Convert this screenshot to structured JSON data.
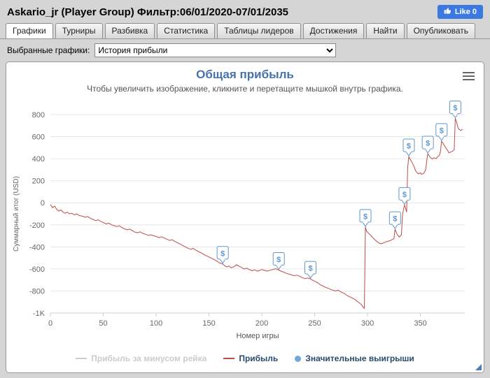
{
  "header": {
    "title": "Askario_jr (Player Group) Фильтр:06/01/2020-07/01/2035",
    "like_label": "Like 0"
  },
  "colors": {
    "title_blue": "#4572A7",
    "like_blue": "#3B79E1"
  },
  "tabs": [
    {
      "label": "Графики",
      "active": true
    },
    {
      "label": "Турниры",
      "active": false
    },
    {
      "label": "Разбивка",
      "active": false
    },
    {
      "label": "Статистика",
      "active": false
    },
    {
      "label": "Таблицы лидеров",
      "active": false
    },
    {
      "label": "Достижения",
      "active": false
    },
    {
      "label": "Найти",
      "active": false
    },
    {
      "label": "Опубликовать",
      "active": false
    }
  ],
  "filter": {
    "label": "Выбранные графики:",
    "selected": "История прибыли"
  },
  "chart_data": {
    "type": "line",
    "title": "Общая прибыль",
    "subtitle": "Чтобы увеличить изображение, кликните и перетащите мышкой внутрь графика.",
    "xlabel": "Номер игры",
    "ylabel": "Суммарный итог (USD)",
    "xlim": [
      0,
      392
    ],
    "ylim": [
      -1000,
      800
    ],
    "grid": "horizontal",
    "legend_position": "bottom",
    "marker_symbol": "$",
    "yticks": [
      {
        "v": 800,
        "label": "800"
      },
      {
        "v": 600,
        "label": "600"
      },
      {
        "v": 400,
        "label": "400"
      },
      {
        "v": 200,
        "label": "200"
      },
      {
        "v": 0,
        "label": "0"
      },
      {
        "v": -200,
        "label": "-200"
      },
      {
        "v": -400,
        "label": "-400"
      },
      {
        "v": -600,
        "label": "-600"
      },
      {
        "v": -800,
        "label": "-800"
      },
      {
        "v": -1000,
        "label": "-1K"
      }
    ],
    "xticks": [
      0,
      50,
      100,
      150,
      200,
      250,
      300,
      350
    ],
    "series": [
      {
        "name": "Прибыль за минусом рейка",
        "type": "line",
        "color": "#cccccc",
        "visible": false,
        "points": []
      },
      {
        "name": "Прибыль",
        "type": "line",
        "color": "#BE4B48",
        "visible": true,
        "points": [
          [
            0,
            -15
          ],
          [
            2,
            -45
          ],
          [
            4,
            -30
          ],
          [
            6,
            -60
          ],
          [
            8,
            -75
          ],
          [
            10,
            -65
          ],
          [
            12,
            -85
          ],
          [
            14,
            -95
          ],
          [
            16,
            -85
          ],
          [
            18,
            -100
          ],
          [
            20,
            -95
          ],
          [
            23,
            -110
          ],
          [
            25,
            -100
          ],
          [
            27,
            -115
          ],
          [
            30,
            -120
          ],
          [
            33,
            -132
          ],
          [
            35,
            -124
          ],
          [
            38,
            -142
          ],
          [
            40,
            -150
          ],
          [
            43,
            -162
          ],
          [
            45,
            -154
          ],
          [
            48,
            -170
          ],
          [
            50,
            -180
          ],
          [
            53,
            -192
          ],
          [
            55,
            -184
          ],
          [
            58,
            -200
          ],
          [
            60,
            -207
          ],
          [
            63,
            -216
          ],
          [
            65,
            -208
          ],
          [
            68,
            -226
          ],
          [
            70,
            -236
          ],
          [
            73,
            -246
          ],
          [
            75,
            -238
          ],
          [
            78,
            -256
          ],
          [
            80,
            -266
          ],
          [
            82,
            -272
          ],
          [
            85,
            -264
          ],
          [
            88,
            -280
          ],
          [
            90,
            -286
          ],
          [
            93,
            -296
          ],
          [
            95,
            -290
          ],
          [
            98,
            -300
          ],
          [
            100,
            -306
          ],
          [
            103,
            -316
          ],
          [
            105,
            -308
          ],
          [
            108,
            -320
          ],
          [
            110,
            -330
          ],
          [
            113,
            -342
          ],
          [
            115,
            -334
          ],
          [
            118,
            -352
          ],
          [
            120,
            -362
          ],
          [
            123,
            -376
          ],
          [
            125,
            -388
          ],
          [
            128,
            -402
          ],
          [
            130,
            -412
          ],
          [
            133,
            -422
          ],
          [
            135,
            -414
          ],
          [
            138,
            -432
          ],
          [
            140,
            -442
          ],
          [
            143,
            -456
          ],
          [
            145,
            -468
          ],
          [
            148,
            -482
          ],
          [
            150,
            -492
          ],
          [
            153,
            -506
          ],
          [
            155,
            -516
          ],
          [
            158,
            -532
          ],
          [
            160,
            -546
          ],
          [
            163,
            -555
          ],
          [
            165,
            -572
          ],
          [
            167,
            -582
          ],
          [
            169,
            -574
          ],
          [
            171,
            -590
          ],
          [
            174,
            -578
          ],
          [
            176,
            -562
          ],
          [
            178,
            -572
          ],
          [
            181,
            -588
          ],
          [
            183,
            -600
          ],
          [
            186,
            -594
          ],
          [
            188,
            -606
          ],
          [
            191,
            -616
          ],
          [
            193,
            -608
          ],
          [
            196,
            -620
          ],
          [
            198,
            -614
          ],
          [
            200,
            -606
          ],
          [
            203,
            -614
          ],
          [
            205,
            -620
          ],
          [
            208,
            -612
          ],
          [
            211,
            -604
          ],
          [
            213,
            -598
          ],
          [
            216,
            -610
          ],
          [
            218,
            -620
          ],
          [
            221,
            -630
          ],
          [
            223,
            -640
          ],
          [
            226,
            -648
          ],
          [
            228,
            -654
          ],
          [
            231,
            -662
          ],
          [
            233,
            -656
          ],
          [
            236,
            -668
          ],
          [
            238,
            -678
          ],
          [
            241,
            -688
          ],
          [
            243,
            -682
          ],
          [
            246,
            -690
          ],
          [
            248,
            -702
          ],
          [
            250,
            -712
          ],
          [
            253,
            -726
          ],
          [
            255,
            -742
          ],
          [
            258,
            -756
          ],
          [
            260,
            -766
          ],
          [
            263,
            -776
          ],
          [
            265,
            -786
          ],
          [
            268,
            -796
          ],
          [
            270,
            -800
          ],
          [
            272,
            -792
          ],
          [
            275,
            -810
          ],
          [
            278,
            -822
          ],
          [
            280,
            -838
          ],
          [
            283,
            -852
          ],
          [
            285,
            -862
          ],
          [
            288,
            -876
          ],
          [
            290,
            -892
          ],
          [
            292,
            -906
          ],
          [
            294,
            -922
          ],
          [
            296,
            -948
          ],
          [
            297,
            -958
          ],
          [
            298,
            -220
          ],
          [
            299,
            -258
          ],
          [
            301,
            -276
          ],
          [
            303,
            -296
          ],
          [
            305,
            -316
          ],
          [
            307,
            -336
          ],
          [
            309,
            -352
          ],
          [
            311,
            -366
          ],
          [
            313,
            -372
          ],
          [
            315,
            -364
          ],
          [
            317,
            -356
          ],
          [
            319,
            -350
          ],
          [
            321,
            -344
          ],
          [
            323,
            -336
          ],
          [
            325,
            -326
          ],
          [
            326,
            -240
          ],
          [
            327,
            -262
          ],
          [
            328,
            -286
          ],
          [
            330,
            -312
          ],
          [
            331,
            -300
          ],
          [
            332,
            -290
          ],
          [
            333,
            -120
          ],
          [
            334,
            -60
          ],
          [
            335,
            -20
          ],
          [
            336,
            -52
          ],
          [
            337,
            -84
          ],
          [
            338,
            320
          ],
          [
            339,
            420
          ],
          [
            340,
            400
          ],
          [
            341,
            384
          ],
          [
            342,
            368
          ],
          [
            344,
            330
          ],
          [
            345,
            302
          ],
          [
            346,
            282
          ],
          [
            348,
            262
          ],
          [
            350,
            272
          ],
          [
            351,
            258
          ],
          [
            353,
            266
          ],
          [
            354,
            280
          ],
          [
            355,
            300
          ],
          [
            356,
            380
          ],
          [
            357,
            445
          ],
          [
            358,
            432
          ],
          [
            359,
            416
          ],
          [
            361,
            398
          ],
          [
            363,
            408
          ],
          [
            365,
            400
          ],
          [
            366,
            414
          ],
          [
            368,
            432
          ],
          [
            369,
            470
          ],
          [
            370,
            560
          ],
          [
            371,
            546
          ],
          [
            372,
            530
          ],
          [
            374,
            498
          ],
          [
            376,
            472
          ],
          [
            377,
            452
          ],
          [
            378,
            458
          ],
          [
            380,
            466
          ],
          [
            381,
            472
          ],
          [
            382,
            482
          ],
          [
            383,
            765
          ],
          [
            384,
            742
          ],
          [
            385,
            702
          ],
          [
            386,
            672
          ],
          [
            388,
            656
          ],
          [
            390,
            666
          ]
        ]
      },
      {
        "name": "Значительные выигрыши",
        "type": "marker",
        "color": "#5E97CF",
        "visible": true,
        "points": [
          [
            163,
            -555
          ],
          [
            216,
            -610
          ],
          [
            246,
            -690
          ],
          [
            298,
            -220
          ],
          [
            326,
            -240
          ],
          [
            335,
            -20
          ],
          [
            339,
            420
          ],
          [
            357,
            445
          ],
          [
            370,
            560
          ],
          [
            383,
            765
          ]
        ]
      }
    ],
    "legend": [
      {
        "label": "Прибыль за минусом рейка",
        "color": "#cccccc",
        "text_color": "#cccccc",
        "type": "line"
      },
      {
        "label": "Прибыль",
        "color": "#BE4B48",
        "text_color": "#274B6D",
        "type": "line"
      },
      {
        "label": "Значительные выигрыши",
        "color": "#6FA8DC",
        "text_color": "#274B6D",
        "type": "marker"
      }
    ]
  }
}
